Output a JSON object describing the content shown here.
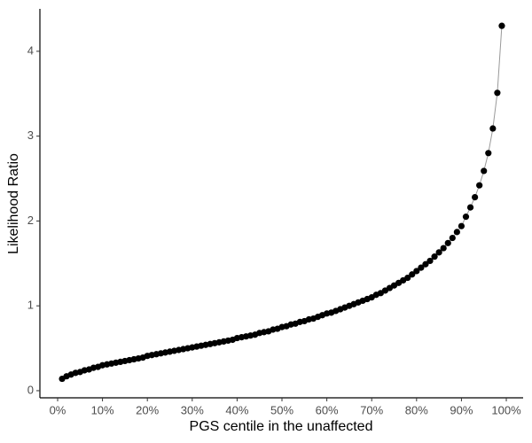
{
  "chart_data": {
    "type": "scatter-line",
    "xlabel": "PGS centile in the unaffected",
    "ylabel": "Likelihood Ratio",
    "x": [
      1,
      2,
      3,
      4,
      5,
      6,
      7,
      8,
      9,
      10,
      11,
      12,
      13,
      14,
      15,
      16,
      17,
      18,
      19,
      20,
      21,
      22,
      23,
      24,
      25,
      26,
      27,
      28,
      29,
      30,
      31,
      32,
      33,
      34,
      35,
      36,
      37,
      38,
      39,
      40,
      41,
      42,
      43,
      44,
      45,
      46,
      47,
      48,
      49,
      50,
      51,
      52,
      53,
      54,
      55,
      56,
      57,
      58,
      59,
      60,
      61,
      62,
      63,
      64,
      65,
      66,
      67,
      68,
      69,
      70,
      71,
      72,
      73,
      74,
      75,
      76,
      77,
      78,
      79,
      80,
      81,
      82,
      83,
      84,
      85,
      86,
      87,
      88,
      89,
      90,
      91,
      92,
      93,
      94,
      95,
      96,
      97,
      98,
      99
    ],
    "values": [
      0.14,
      0.17,
      0.19,
      0.21,
      0.22,
      0.24,
      0.25,
      0.27,
      0.28,
      0.3,
      0.31,
      0.32,
      0.33,
      0.34,
      0.35,
      0.36,
      0.37,
      0.38,
      0.39,
      0.41,
      0.42,
      0.43,
      0.44,
      0.45,
      0.46,
      0.47,
      0.48,
      0.49,
      0.5,
      0.51,
      0.52,
      0.53,
      0.54,
      0.55,
      0.56,
      0.57,
      0.58,
      0.59,
      0.6,
      0.62,
      0.63,
      0.64,
      0.65,
      0.66,
      0.68,
      0.69,
      0.7,
      0.72,
      0.73,
      0.75,
      0.76,
      0.78,
      0.79,
      0.81,
      0.82,
      0.84,
      0.85,
      0.87,
      0.89,
      0.91,
      0.92,
      0.94,
      0.96,
      0.98,
      1.0,
      1.02,
      1.04,
      1.06,
      1.08,
      1.1,
      1.13,
      1.15,
      1.18,
      1.21,
      1.24,
      1.27,
      1.3,
      1.33,
      1.37,
      1.41,
      1.45,
      1.49,
      1.53,
      1.58,
      1.63,
      1.68,
      1.74,
      1.8,
      1.87,
      1.94,
      2.05,
      2.16,
      2.28,
      2.42,
      2.59,
      2.8,
      3.09,
      3.51,
      4.3
    ],
    "color": "#000000",
    "line_color": "#999999",
    "xlim": [
      -3.95,
      103.75
    ],
    "xticks": [
      {
        "value": 0,
        "label": "0%"
      },
      {
        "value": 10,
        "label": "10%"
      },
      {
        "value": 20,
        "label": "20%"
      },
      {
        "value": 30,
        "label": "30%"
      },
      {
        "value": 40,
        "label": "40%"
      },
      {
        "value": 50,
        "label": "50%"
      },
      {
        "value": 60,
        "label": "60%"
      },
      {
        "value": 70,
        "label": "70%"
      },
      {
        "value": 80,
        "label": "80%"
      },
      {
        "value": 90,
        "label": "90%"
      },
      {
        "value": 100,
        "label": "100%"
      }
    ],
    "ylim": [
      -0.084,
      4.5
    ],
    "yticks": [
      0,
      1,
      2,
      3,
      4
    ],
    "grid": false
  }
}
